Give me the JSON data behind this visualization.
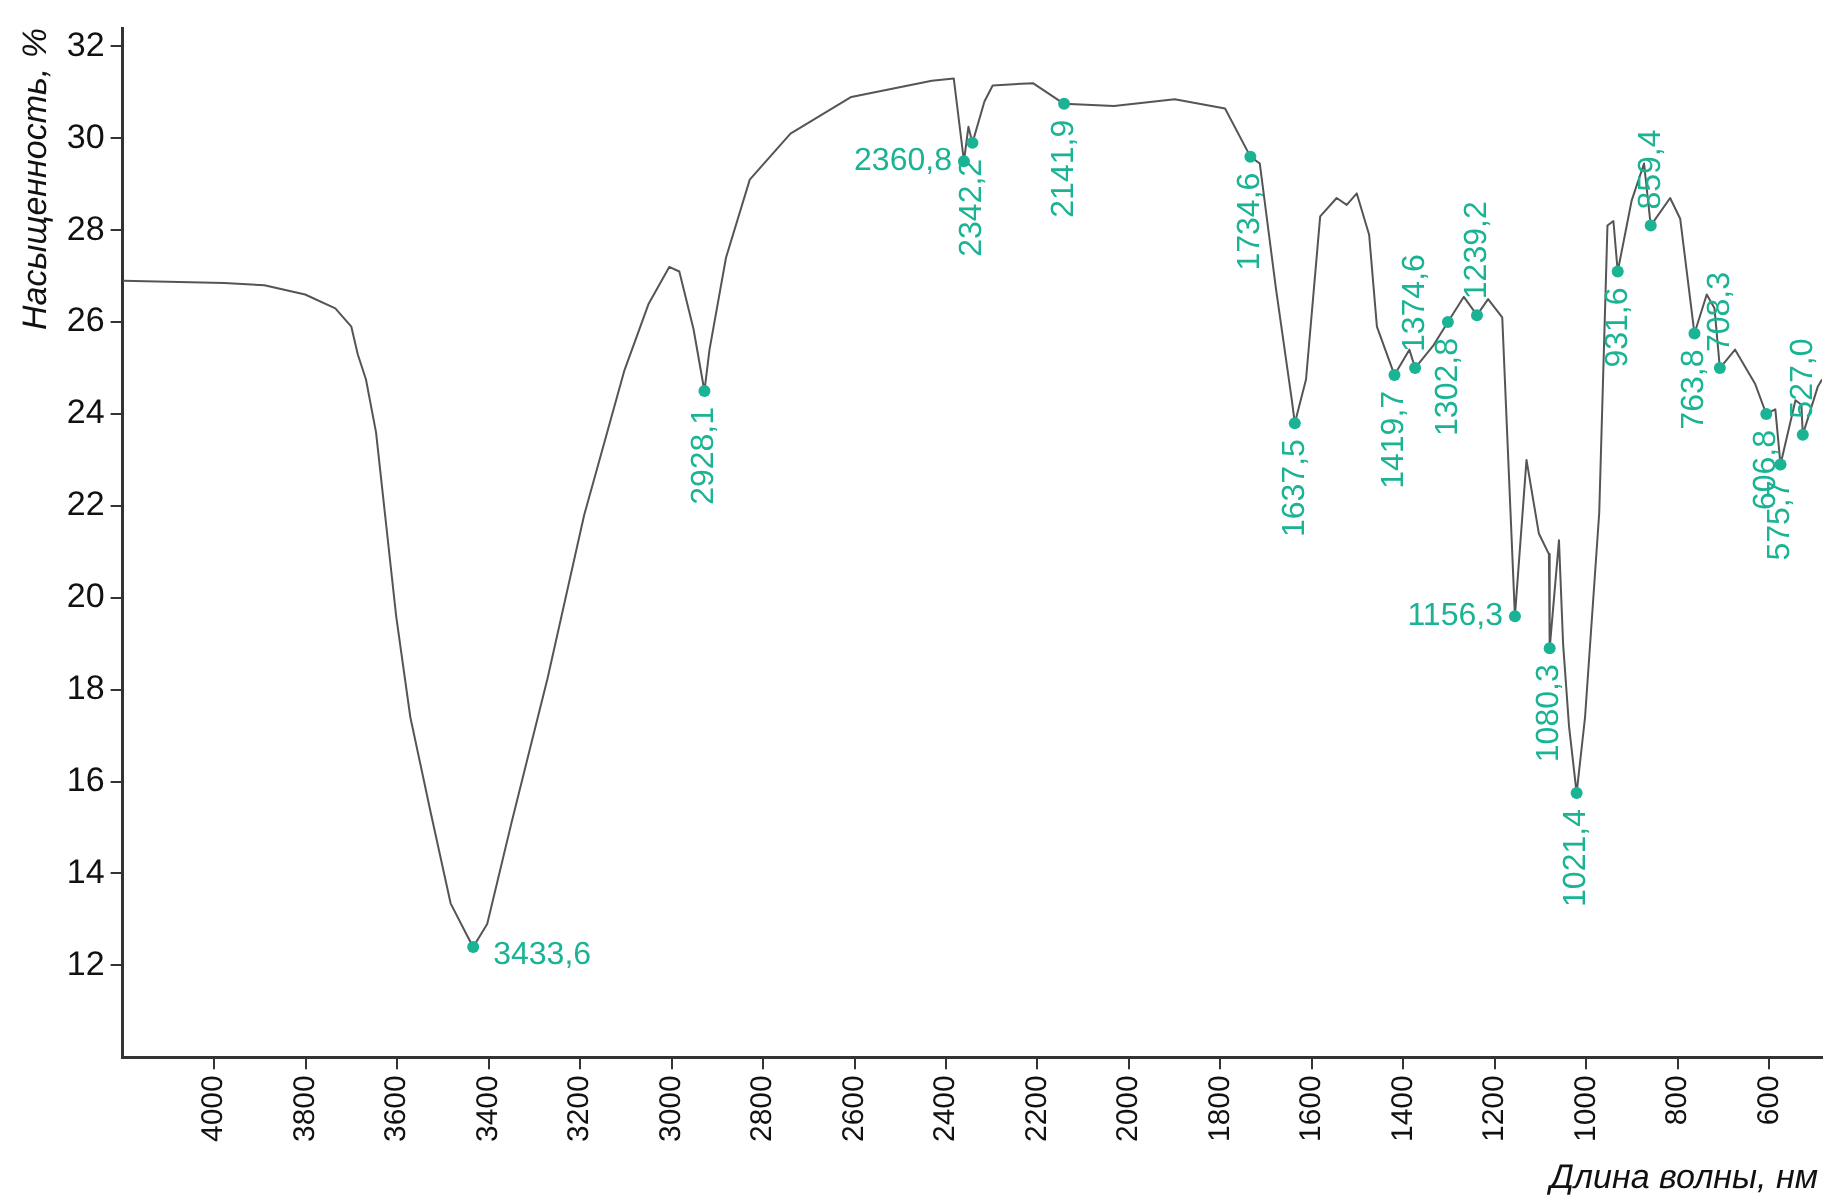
{
  "chart_data": {
    "type": "line",
    "xlabel": "Длина волны, нм",
    "ylabel": "Насыщенность, %",
    "xlim": [
      4200,
      485
    ],
    "ylim": [
      10,
      32.4
    ],
    "xticks": [
      4000,
      3800,
      3600,
      3400,
      3200,
      3000,
      2800,
      2600,
      2400,
      2200,
      2000,
      1800,
      1600,
      1400,
      1200,
      1000,
      800,
      600
    ],
    "yticks": [
      12,
      14,
      16,
      18,
      20,
      22,
      24,
      26,
      28,
      30,
      32
    ],
    "grid": false,
    "legend": false,
    "series": [
      {
        "type": "line",
        "color": "#555555",
        "marker": "none",
        "x": [
          4199,
          3978,
          3890,
          3801,
          3735,
          3700,
          3686,
          3668,
          3646,
          3624,
          3602,
          3571,
          3527,
          3483,
          3447,
          3433.6,
          3403,
          3350,
          3271,
          3191,
          3103,
          3050,
          3005,
          2983,
          2952,
          2928.1,
          2917,
          2881,
          2829,
          2740,
          2607,
          2431,
          2383,
          2360.8,
          2351,
          2342.2,
          2316,
          2298,
          2210,
          2141.9,
          2033,
          1900,
          1790,
          1734.6,
          1714,
          1679,
          1644,
          1637.5,
          1613,
          1582,
          1546,
          1524,
          1502,
          1475,
          1458,
          1419.7,
          1387,
          1374.6,
          1334,
          1302.8,
          1268,
          1239.2,
          1215,
          1184,
          1156.3,
          1131,
          1104,
          1082,
          1080.3,
          1060,
          1051,
          1038,
          1021.4,
          1003,
          972,
          954,
          941,
          931.6,
          901,
          874,
          859.4,
          817,
          795,
          763.8,
          737,
          720,
          708.3,
          675,
          631,
          606.8,
          587,
          575.7,
          543,
          530,
          527,
          494,
          485
        ],
        "values": [
          26.9,
          26.85,
          26.8,
          26.6,
          26.3,
          25.9,
          25.3,
          24.75,
          23.6,
          21.6,
          19.6,
          17.4,
          15.35,
          13.35,
          12.65,
          12.4,
          12.9,
          15.1,
          18.25,
          21.8,
          24.95,
          26.4,
          27.2,
          27.1,
          25.85,
          24.5,
          25.4,
          27.4,
          29.1,
          30.1,
          30.9,
          31.25,
          31.3,
          29.5,
          30.25,
          29.9,
          30.8,
          31.15,
          31.2,
          30.75,
          30.7,
          30.85,
          30.65,
          29.6,
          29.45,
          26.75,
          24.3,
          23.8,
          24.75,
          28.3,
          28.7,
          28.55,
          28.8,
          27.9,
          25.9,
          24.85,
          25.4,
          25.0,
          25.5,
          26.0,
          26.55,
          26.15,
          26.5,
          26.1,
          19.6,
          23.0,
          21.4,
          20.95,
          18.9,
          21.25,
          19.0,
          17.2,
          15.75,
          17.4,
          21.85,
          28.1,
          28.2,
          27.1,
          28.65,
          29.45,
          28.1,
          28.7,
          28.25,
          25.75,
          26.6,
          26.3,
          25.0,
          25.4,
          24.65,
          24.0,
          24.1,
          22.9,
          24.3,
          24.2,
          23.55,
          24.6,
          24.75
        ]
      },
      {
        "type": "scatter",
        "color": "#1ab394",
        "marker": "circle",
        "x": [
          3433.6,
          2928.1,
          2360.8,
          2342.2,
          2141.9,
          1734.6,
          1637.5,
          1419.7,
          1374.6,
          1302.8,
          1239.2,
          1156.3,
          1080.3,
          1021.4,
          931.6,
          859.4,
          763.8,
          708.3,
          606.8,
          575.7,
          527.0
        ],
        "values": [
          12.4,
          24.5,
          29.5,
          29.9,
          30.75,
          29.6,
          23.8,
          24.85,
          25.0,
          26.0,
          26.15,
          19.6,
          18.9,
          15.75,
          27.1,
          28.1,
          25.75,
          25.0,
          24.0,
          22.9,
          23.55
        ]
      }
    ],
    "annotations": [
      {
        "text": "3433,6",
        "x": 3433.6,
        "y": 12.4
      },
      {
        "text": "2928,1",
        "x": 2928.1,
        "y": 24.5
      },
      {
        "text": "2360,8",
        "x": 2360.8,
        "y": 29.5
      },
      {
        "text": "2342,2",
        "x": 2342.2,
        "y": 29.9
      },
      {
        "text": "2141,9",
        "x": 2141.9,
        "y": 30.75
      },
      {
        "text": "1734,6",
        "x": 1734.6,
        "y": 29.6
      },
      {
        "text": "1637,5",
        "x": 1637.5,
        "y": 23.8
      },
      {
        "text": "1419,7",
        "x": 1419.7,
        "y": 24.85
      },
      {
        "text": "1374,6",
        "x": 1374.6,
        "y": 25.0
      },
      {
        "text": "1302,8",
        "x": 1302.8,
        "y": 26.0
      },
      {
        "text": "1239,2",
        "x": 1239.2,
        "y": 26.15
      },
      {
        "text": "1156,3",
        "x": 1156.3,
        "y": 19.6
      },
      {
        "text": "1080,3",
        "x": 1080.3,
        "y": 18.9
      },
      {
        "text": "1021,4",
        "x": 1021.4,
        "y": 15.75
      },
      {
        "text": "931,6",
        "x": 931.6,
        "y": 27.1
      },
      {
        "text": "859,4",
        "x": 859.4,
        "y": 28.1
      },
      {
        "text": "763,8",
        "x": 763.8,
        "y": 25.75
      },
      {
        "text": "708,3",
        "x": 708.3,
        "y": 25.0
      },
      {
        "text": "606,8",
        "x": 606.8,
        "y": 24.0
      },
      {
        "text": "575,7",
        "x": 575.7,
        "y": 22.9
      },
      {
        "text": "527,0",
        "x": 527.0,
        "y": 23.55
      }
    ]
  }
}
